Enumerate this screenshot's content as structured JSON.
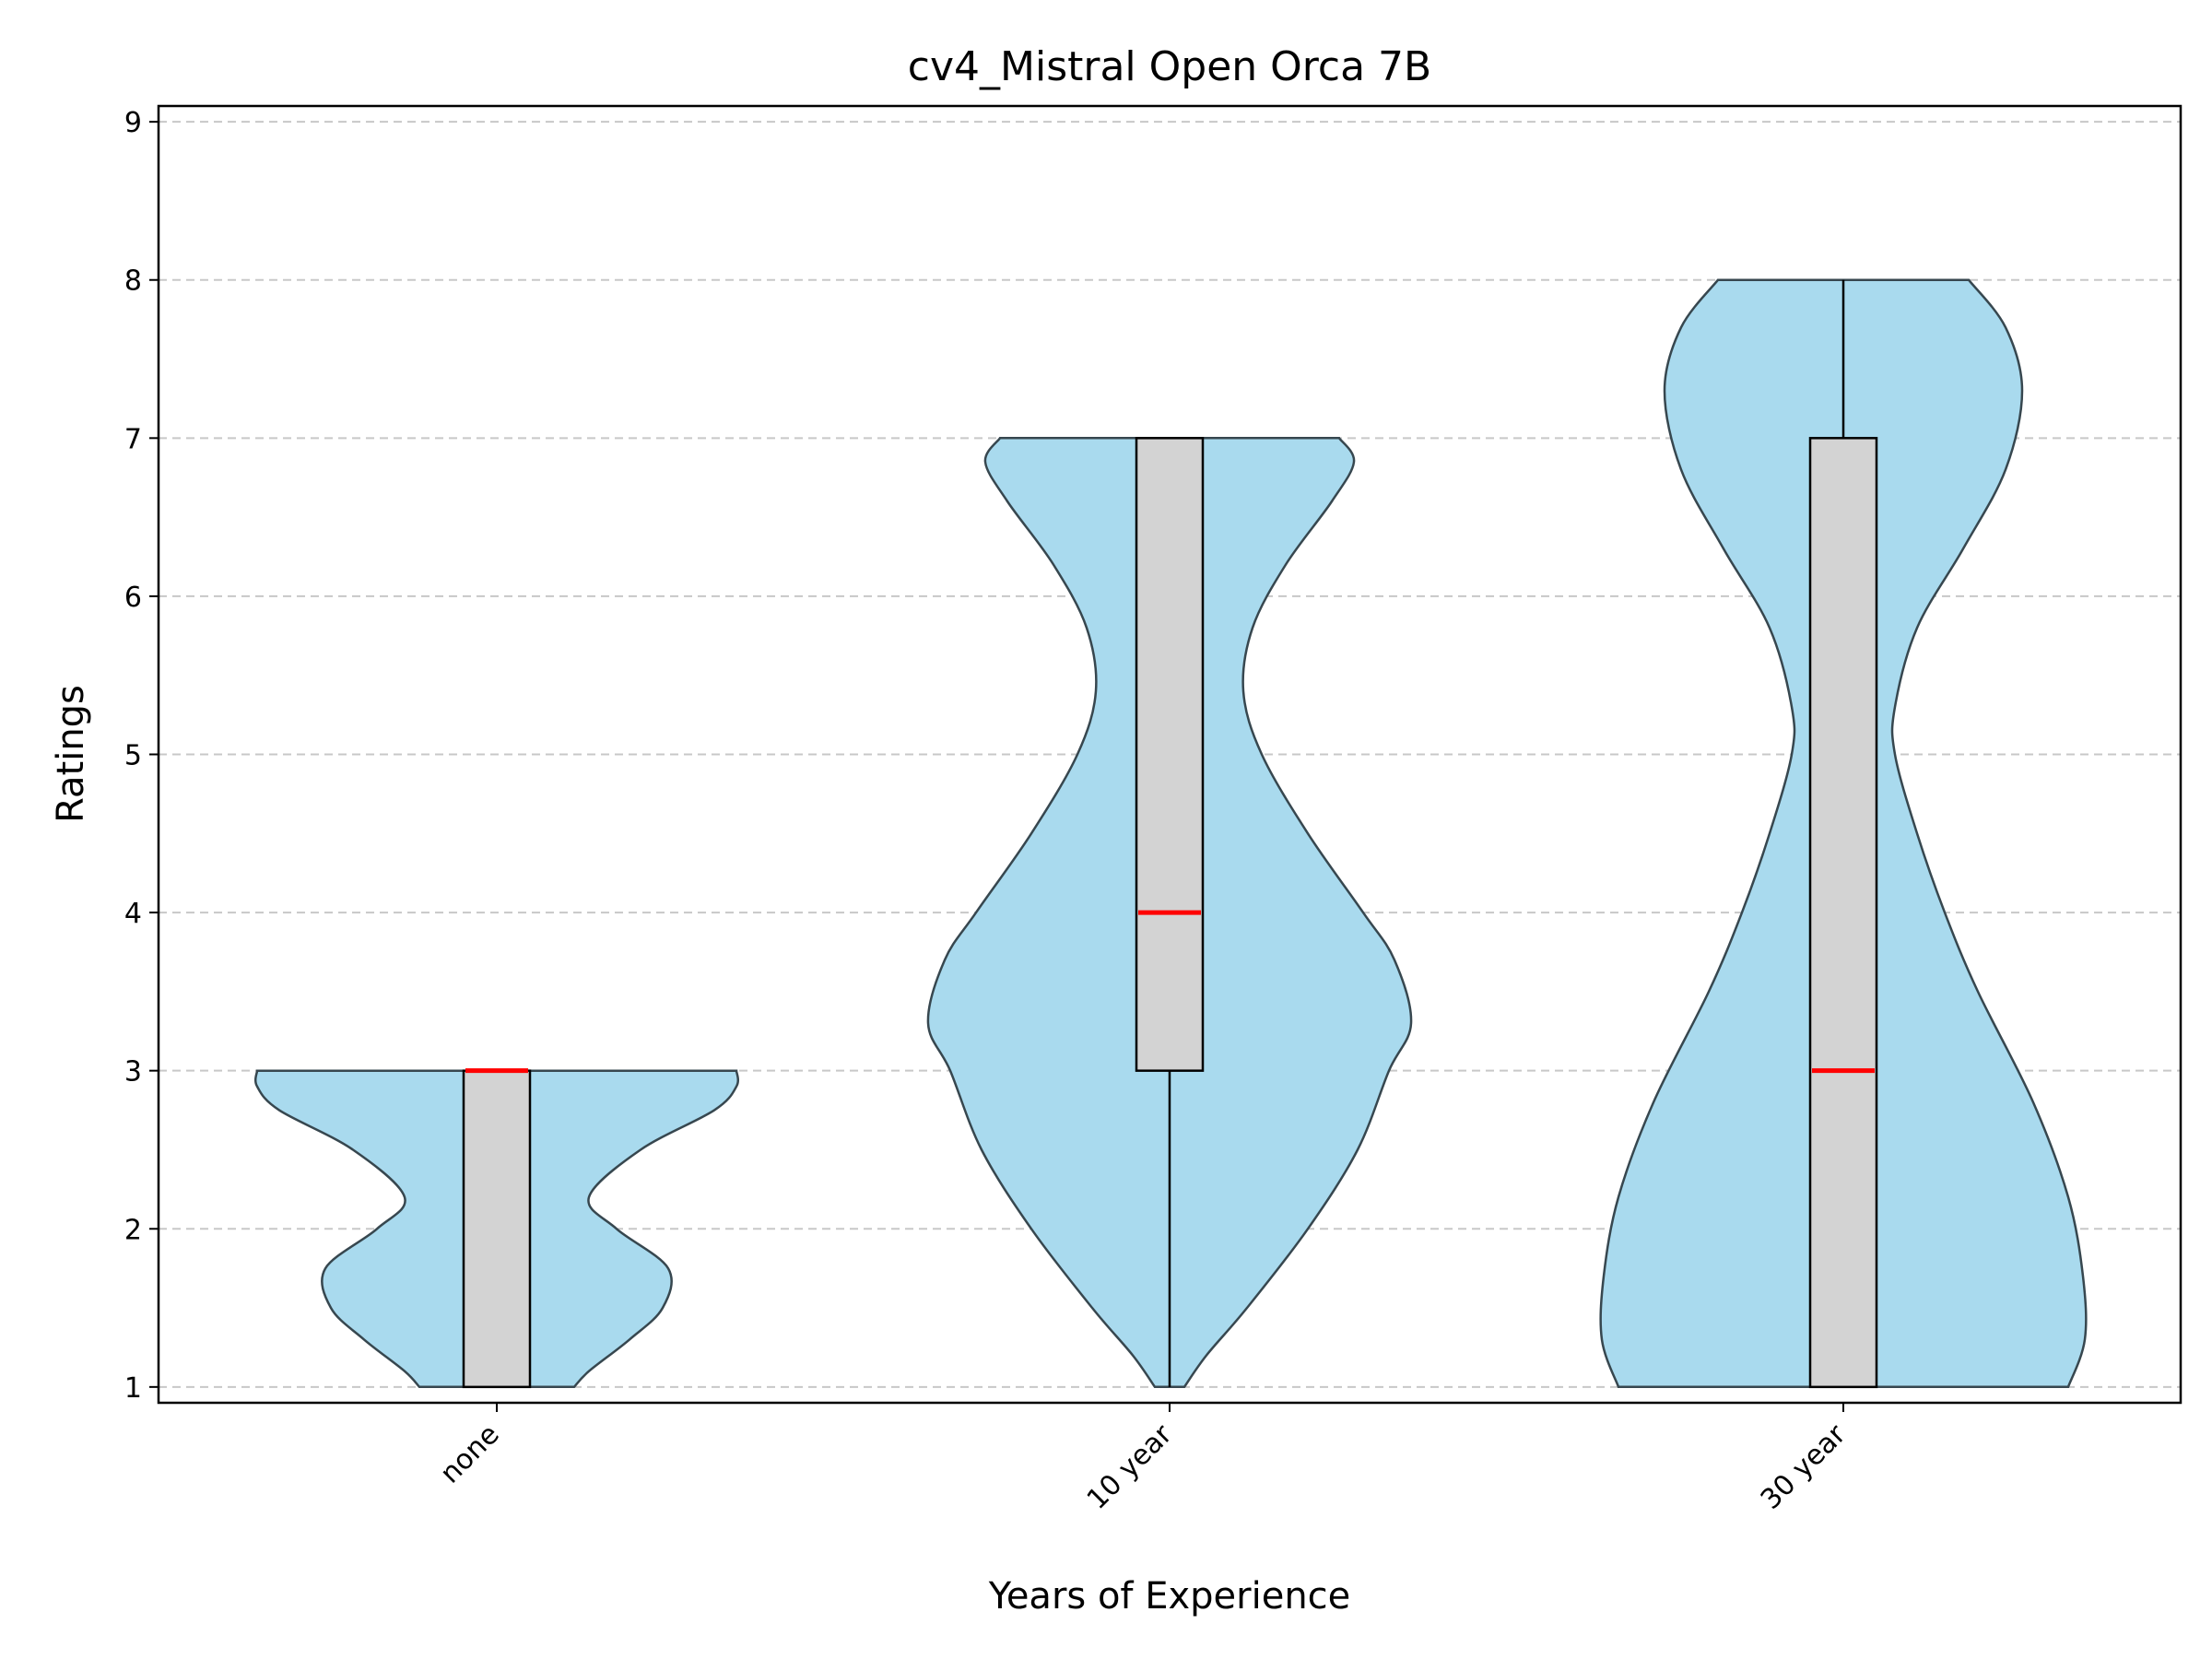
{
  "chart_data": {
    "type": "violin",
    "title": "cv4_Mistral Open Orca 7B",
    "xlabel": "Years of Experience",
    "ylabel": "Ratings",
    "ylim": [
      0.9,
      9.1
    ],
    "yticks": [
      1,
      2,
      3,
      4,
      5,
      6,
      7,
      8,
      9
    ],
    "categories": [
      "none",
      "10 year",
      "30 year"
    ],
    "grid": "horizontal dashed",
    "colors": {
      "violin_fill": "#a9daee",
      "violin_edge": "#37474f",
      "box_fill": "#d3d3d3",
      "median": "#ff0000",
      "grid": "#c8c8c8"
    },
    "groups": [
      {
        "category": "none",
        "min": 1,
        "q1": 1,
        "median": 3,
        "q3": 3,
        "max": 3,
        "density": [
          [
            1.0,
            0.42
          ],
          [
            1.1,
            0.5
          ],
          [
            1.3,
            0.72
          ],
          [
            1.5,
            0.9
          ],
          [
            1.75,
            0.93
          ],
          [
            2.0,
            0.65
          ],
          [
            2.2,
            0.5
          ],
          [
            2.5,
            0.78
          ],
          [
            2.75,
            1.18
          ],
          [
            2.9,
            1.3
          ],
          [
            3.0,
            1.3
          ]
        ]
      },
      {
        "category": "10 year",
        "min": 1,
        "q1": 3,
        "median": 4,
        "q3": 7,
        "max": 7,
        "density": [
          [
            1.0,
            0.08
          ],
          [
            1.2,
            0.2
          ],
          [
            1.5,
            0.42
          ],
          [
            2.0,
            0.75
          ],
          [
            2.5,
            1.02
          ],
          [
            3.0,
            1.19
          ],
          [
            3.3,
            1.31
          ],
          [
            3.7,
            1.22
          ],
          [
            4.0,
            1.05
          ],
          [
            4.5,
            0.75
          ],
          [
            5.0,
            0.5
          ],
          [
            5.4,
            0.4
          ],
          [
            5.8,
            0.45
          ],
          [
            6.2,
            0.63
          ],
          [
            6.6,
            0.88
          ],
          [
            6.85,
            1.0
          ],
          [
            7.0,
            0.92
          ]
        ]
      },
      {
        "category": "30 year",
        "min": 1,
        "q1": 1,
        "median": 3,
        "q3": 7,
        "max": 8,
        "density": [
          [
            1.0,
            1.22
          ],
          [
            1.3,
            1.31
          ],
          [
            1.7,
            1.3
          ],
          [
            2.2,
            1.22
          ],
          [
            2.8,
            1.03
          ],
          [
            3.5,
            0.73
          ],
          [
            4.0,
            0.55
          ],
          [
            4.5,
            0.4
          ],
          [
            5.0,
            0.28
          ],
          [
            5.3,
            0.28
          ],
          [
            5.8,
            0.4
          ],
          [
            6.3,
            0.65
          ],
          [
            6.8,
            0.88
          ],
          [
            7.3,
            0.97
          ],
          [
            7.7,
            0.88
          ],
          [
            8.0,
            0.68
          ]
        ]
      }
    ]
  }
}
